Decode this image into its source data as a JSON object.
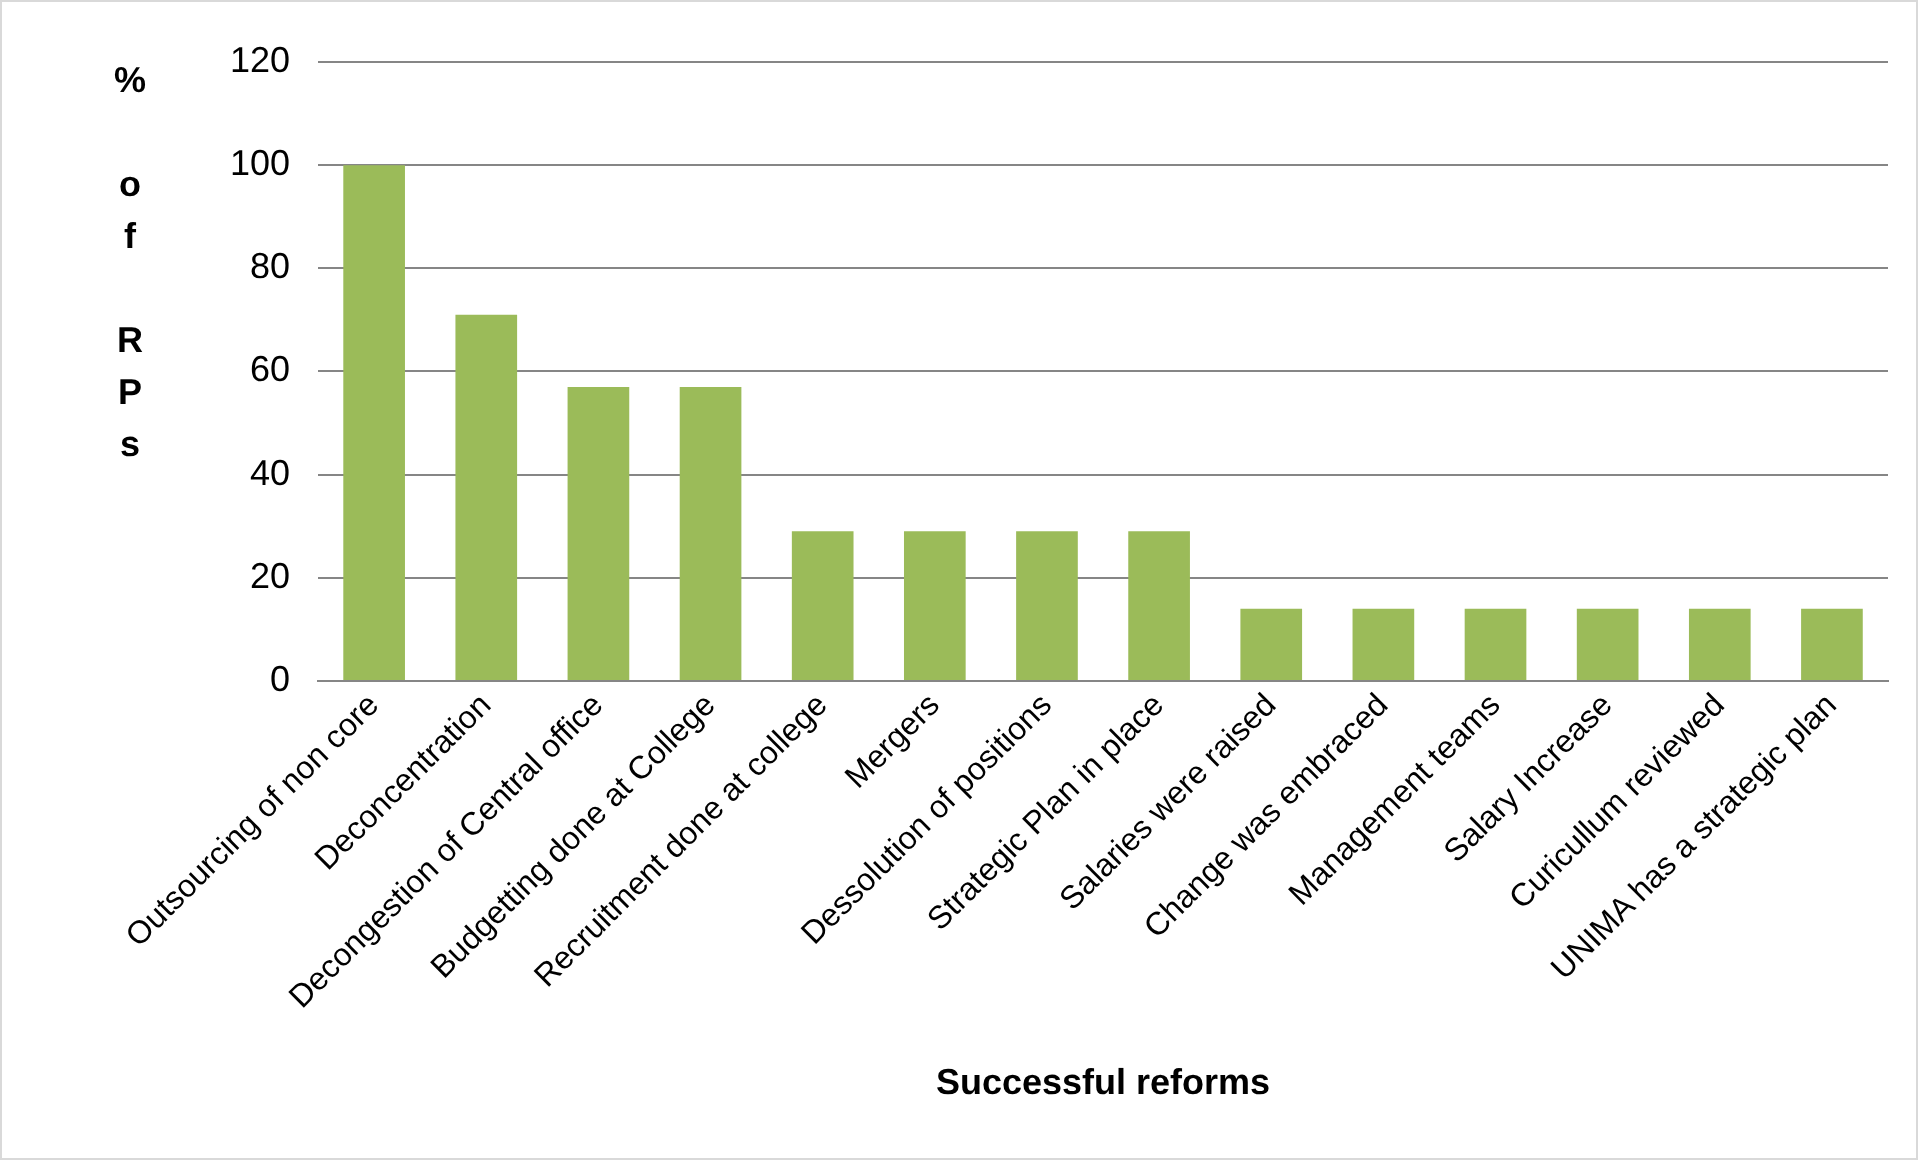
{
  "chart_data": {
    "type": "bar",
    "xlabel": "Successful reforms",
    "ylabel": "% of RPs",
    "categories": [
      "Outsourcing of non core",
      "Deconcentration",
      "Decongestion of Central office",
      "Budgetting done at College",
      "Recruitment done at college",
      "Mergers",
      "Dessolution of positions",
      "Strategic Plan in place",
      "Salaries were raised",
      "Change was embraced",
      "Management teams",
      "Salary Increase",
      "Curicullum reviewed",
      "UNIMA has a strategic plan"
    ],
    "values": [
      100,
      71,
      57,
      57,
      29,
      29,
      29,
      29,
      14,
      14,
      14,
      14,
      14,
      14
    ],
    "color": "#9bbb59",
    "ylim": [
      0,
      120
    ],
    "yticks": [
      0,
      20,
      40,
      60,
      80,
      100,
      120
    ],
    "grid": "y",
    "legend": false
  }
}
